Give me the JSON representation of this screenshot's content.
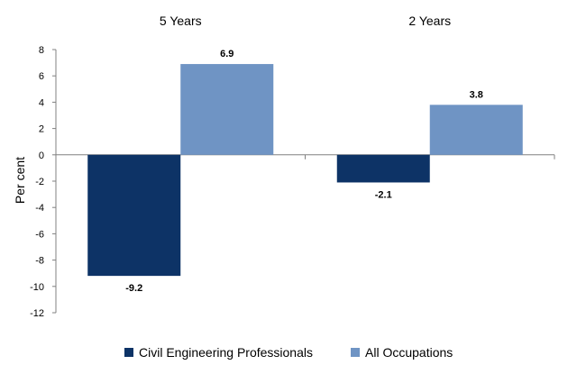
{
  "chart_data": {
    "type": "bar",
    "categories": [
      "5 Years",
      "2 Years"
    ],
    "series": [
      {
        "name": "Civil Engineering Professionals",
        "values": [
          -9.2,
          -2.1
        ],
        "color": "#0d3366"
      },
      {
        "name": "All Occupations",
        "values": [
          6.9,
          3.8
        ],
        "color": "#6f94c4"
      }
    ],
    "data_labels": [
      [
        "-9.2",
        "-2.1"
      ],
      [
        "6.9",
        "3.8"
      ]
    ],
    "ylabel": "Per cent",
    "ylim": [
      -12,
      8
    ],
    "yticks": [
      8,
      6,
      4,
      2,
      0,
      -2,
      -4,
      -6,
      -8,
      -10,
      -12
    ],
    "category_labels_position": "top",
    "grid": false,
    "legend_position": "bottom"
  }
}
